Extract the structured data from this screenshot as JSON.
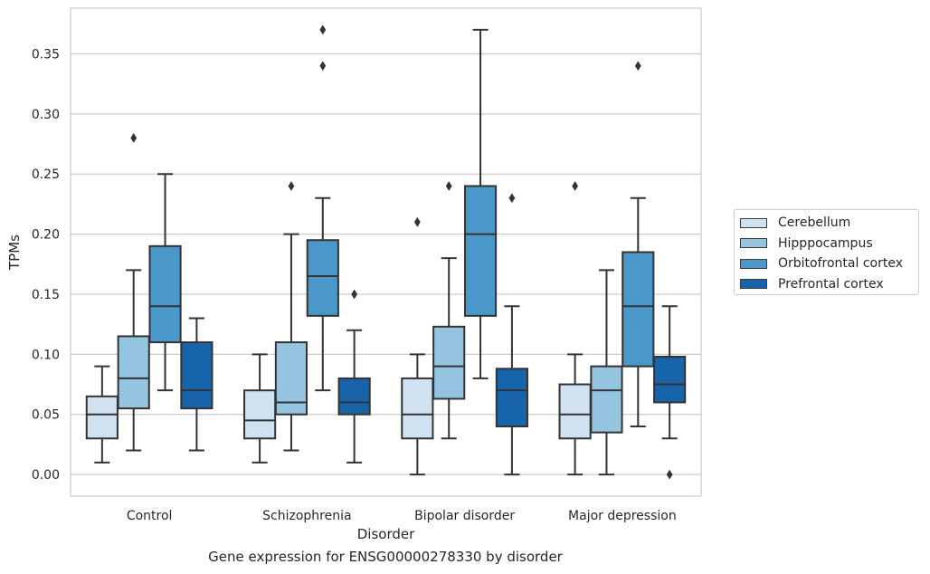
{
  "chart_data": {
    "type": "boxplot",
    "title": "Gene expression for ENSG00000278330 by disorder",
    "xlabel": "Disorder",
    "ylabel": "TPMs",
    "categories": [
      "Control",
      "Schizophrenia",
      "Bipolar disorder",
      "Major depression"
    ],
    "ylim": [
      -0.018,
      0.388
    ],
    "yticks": [
      0.0,
      0.05,
      0.1,
      0.15,
      0.2,
      0.25,
      0.3,
      0.35
    ],
    "ytick_labels": [
      "0.00",
      "0.05",
      "0.10",
      "0.15",
      "0.20",
      "0.25",
      "0.30",
      "0.35"
    ],
    "grid": "horizontal",
    "legend_position": "outside-right",
    "series": [
      {
        "name": "Cerebellum",
        "color": "#d0e1f2",
        "boxes": [
          {
            "whislo": 0.01,
            "q1": 0.03,
            "med": 0.05,
            "q3": 0.065,
            "whishi": 0.09,
            "fliers": []
          },
          {
            "whislo": 0.01,
            "q1": 0.03,
            "med": 0.045,
            "q3": 0.07,
            "whishi": 0.1,
            "fliers": []
          },
          {
            "whislo": 0.0,
            "q1": 0.03,
            "med": 0.05,
            "q3": 0.08,
            "whishi": 0.1,
            "fliers": [
              0.21
            ]
          },
          {
            "whislo": 0.0,
            "q1": 0.03,
            "med": 0.05,
            "q3": 0.075,
            "whishi": 0.1,
            "fliers": [
              0.24
            ]
          }
        ]
      },
      {
        "name": "Hipppocampus",
        "color": "#94c4df",
        "boxes": [
          {
            "whislo": 0.02,
            "q1": 0.055,
            "med": 0.08,
            "q3": 0.115,
            "whishi": 0.17,
            "fliers": [
              0.28
            ]
          },
          {
            "whislo": 0.02,
            "q1": 0.05,
            "med": 0.06,
            "q3": 0.11,
            "whishi": 0.2,
            "fliers": [
              0.24
            ]
          },
          {
            "whislo": 0.03,
            "q1": 0.063,
            "med": 0.09,
            "q3": 0.123,
            "whishi": 0.18,
            "fliers": [
              0.24
            ]
          },
          {
            "whislo": 0.0,
            "q1": 0.035,
            "med": 0.07,
            "q3": 0.09,
            "whishi": 0.17,
            "fliers": []
          }
        ]
      },
      {
        "name": "Orbitofrontal cortex",
        "color": "#4a98c9",
        "boxes": [
          {
            "whislo": 0.07,
            "q1": 0.11,
            "med": 0.14,
            "q3": 0.19,
            "whishi": 0.25,
            "fliers": []
          },
          {
            "whislo": 0.07,
            "q1": 0.132,
            "med": 0.165,
            "q3": 0.195,
            "whishi": 0.23,
            "fliers": [
              0.34,
              0.37
            ]
          },
          {
            "whislo": 0.08,
            "q1": 0.132,
            "med": 0.2,
            "q3": 0.24,
            "whishi": 0.37,
            "fliers": []
          },
          {
            "whislo": 0.04,
            "q1": 0.09,
            "med": 0.14,
            "q3": 0.185,
            "whishi": 0.23,
            "fliers": [
              0.34
            ]
          }
        ]
      },
      {
        "name": "Prefrontal cortex",
        "color": "#1764ab",
        "boxes": [
          {
            "whislo": 0.02,
            "q1": 0.055,
            "med": 0.07,
            "q3": 0.11,
            "whishi": 0.13,
            "fliers": []
          },
          {
            "whislo": 0.01,
            "q1": 0.05,
            "med": 0.06,
            "q3": 0.08,
            "whishi": 0.12,
            "fliers": [
              0.15
            ]
          },
          {
            "whislo": 0.0,
            "q1": 0.04,
            "med": 0.07,
            "q3": 0.088,
            "whishi": 0.14,
            "fliers": [
              0.23
            ]
          },
          {
            "whislo": 0.03,
            "q1": 0.06,
            "med": 0.075,
            "q3": 0.098,
            "whishi": 0.14,
            "fliers": [
              0.0
            ]
          }
        ]
      }
    ]
  }
}
